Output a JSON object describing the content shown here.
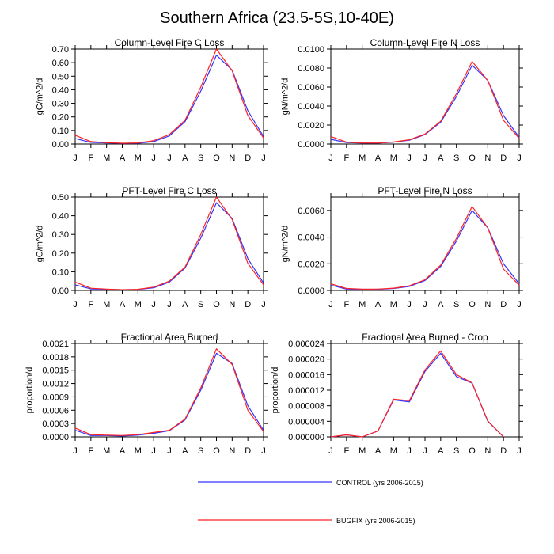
{
  "figure": {
    "title": "Southern Africa (23.5-5S,10-40E)"
  },
  "series_styles": [
    {
      "name": "CONTROL (yrs 2006-2015)",
      "color": "#3333ff"
    },
    {
      "name": "BUGFIX (yrs 2006-2015)",
      "color": "#ff2222"
    }
  ],
  "chart_data": [
    {
      "type": "line",
      "title": "Column-Level Fire C Loss",
      "xlabel": "",
      "ylabel": "gC/m^2/d",
      "categories": [
        "J",
        "F",
        "M",
        "A",
        "M",
        "J",
        "J",
        "A",
        "S",
        "O",
        "N",
        "D",
        "J"
      ],
      "ylim": [
        0,
        0.7
      ],
      "yticks": [
        0,
        0.1,
        0.2,
        0.3,
        0.4,
        0.5,
        0.6,
        0.7
      ],
      "yticklabels": [
        "0.00",
        "0.10",
        "0.20",
        "0.30",
        "0.40",
        "0.50",
        "0.60",
        "0.70"
      ],
      "series": [
        {
          "name": "CONTROL (yrs 2006-2015)",
          "values": [
            0.04,
            0.012,
            0.008,
            0.005,
            0.006,
            0.018,
            0.06,
            0.165,
            0.39,
            0.655,
            0.545,
            0.245,
            0.055
          ]
        },
        {
          "name": "BUGFIX (yrs 2006-2015)",
          "values": [
            0.065,
            0.018,
            0.01,
            0.006,
            0.008,
            0.025,
            0.07,
            0.175,
            0.42,
            0.7,
            0.54,
            0.21,
            0.045
          ]
        }
      ]
    },
    {
      "type": "line",
      "title": "Column-Level Fire N Loss",
      "xlabel": "",
      "ylabel": "gN/m^2/d",
      "categories": [
        "J",
        "F",
        "M",
        "A",
        "M",
        "J",
        "J",
        "A",
        "S",
        "O",
        "N",
        "D",
        "J"
      ],
      "ylim": [
        0,
        0.01
      ],
      "yticks": [
        0,
        0.002,
        0.004,
        0.006,
        0.008,
        0.01
      ],
      "yticklabels": [
        "0.0000",
        "0.0020",
        "0.0040",
        "0.0060",
        "0.0080",
        "0.0100"
      ],
      "series": [
        {
          "name": "CONTROL (yrs 2006-2015)",
          "values": [
            0.0005,
            0.00015,
            0.0001,
            0.0001,
            0.0002,
            0.0004,
            0.001,
            0.0023,
            0.005,
            0.0083,
            0.0067,
            0.003,
            0.0007
          ]
        },
        {
          "name": "BUGFIX (yrs 2006-2015)",
          "values": [
            0.0008,
            0.0002,
            0.00012,
            0.0001,
            0.00022,
            0.00045,
            0.00105,
            0.0024,
            0.0053,
            0.0087,
            0.0067,
            0.0025,
            0.0006
          ]
        }
      ]
    },
    {
      "type": "line",
      "title": "PFT-Level Fire C Loss",
      "xlabel": "",
      "ylabel": "gC/m^2/d",
      "categories": [
        "J",
        "F",
        "M",
        "A",
        "M",
        "J",
        "J",
        "A",
        "S",
        "O",
        "N",
        "D",
        "J"
      ],
      "ylim": [
        0,
        0.5
      ],
      "yticks": [
        0,
        0.1,
        0.2,
        0.3,
        0.4,
        0.5
      ],
      "yticklabels": [
        "0.00",
        "0.10",
        "0.20",
        "0.30",
        "0.40",
        "0.50"
      ],
      "series": [
        {
          "name": "CONTROL (yrs 2006-2015)",
          "values": [
            0.03,
            0.008,
            0.006,
            0.004,
            0.005,
            0.014,
            0.045,
            0.12,
            0.28,
            0.47,
            0.385,
            0.17,
            0.04
          ]
        },
        {
          "name": "BUGFIX (yrs 2006-2015)",
          "values": [
            0.045,
            0.012,
            0.007,
            0.004,
            0.006,
            0.018,
            0.05,
            0.125,
            0.3,
            0.5,
            0.38,
            0.145,
            0.03
          ]
        }
      ]
    },
    {
      "type": "line",
      "title": "PFT-Level Fire N Loss",
      "xlabel": "",
      "ylabel": "gN/m^2/d",
      "categories": [
        "J",
        "F",
        "M",
        "A",
        "M",
        "J",
        "J",
        "A",
        "S",
        "O",
        "N",
        "D",
        "J"
      ],
      "ylim": [
        0,
        0.007
      ],
      "yticks": [
        0,
        0.002,
        0.004,
        0.006
      ],
      "yticklabels": [
        "0.0000",
        "0.0020",
        "0.0040",
        "0.0060"
      ],
      "series": [
        {
          "name": "CONTROL (yrs 2006-2015)",
          "values": [
            0.0004,
            0.0001,
            8e-05,
            8e-05,
            0.00015,
            0.0003,
            0.00075,
            0.0018,
            0.0037,
            0.006,
            0.0047,
            0.002,
            0.0005
          ]
        },
        {
          "name": "BUGFIX (yrs 2006-2015)",
          "values": [
            0.0005,
            0.00015,
            0.0001,
            0.0001,
            0.00017,
            0.00035,
            0.0008,
            0.0019,
            0.0039,
            0.0063,
            0.0047,
            0.0016,
            0.0004
          ]
        }
      ]
    },
    {
      "type": "line",
      "title": "Fractional Area Burned",
      "xlabel": "",
      "ylabel": "proportion/d",
      "categories": [
        "J",
        "F",
        "M",
        "A",
        "M",
        "J",
        "J",
        "A",
        "S",
        "O",
        "N",
        "D",
        "J"
      ],
      "ylim": [
        0,
        0.0021
      ],
      "yticks": [
        0,
        0.0003,
        0.0006,
        0.0009,
        0.0012,
        0.0015,
        0.0018,
        0.0021
      ],
      "yticklabels": [
        "0.0000",
        "0.0003",
        "0.0006",
        "0.0009",
        "0.0012",
        "0.0015",
        "0.0018",
        "0.0021"
      ],
      "series": [
        {
          "name": "CONTROL (yrs 2006-2015)",
          "values": [
            0.00015,
            3e-05,
            3e-05,
            2e-05,
            4e-05,
            8e-05,
            0.00014,
            0.00038,
            0.00105,
            0.00188,
            0.00165,
            0.0007,
            0.00015
          ]
        },
        {
          "name": "BUGFIX (yrs 2006-2015)",
          "values": [
            0.0002,
            5e-05,
            4e-05,
            3e-05,
            5e-05,
            0.0001,
            0.00015,
            0.0004,
            0.0011,
            0.00198,
            0.00163,
            0.0006,
            0.00012
          ]
        }
      ]
    },
    {
      "type": "line",
      "title": "Fractional Area Burned - Crop",
      "xlabel": "",
      "ylabel": "proportion/d",
      "categories": [
        "J",
        "F",
        "M",
        "A",
        "M",
        "J",
        "J",
        "A",
        "S",
        "O",
        "N",
        "D",
        "J"
      ],
      "ylim": [
        0,
        2.4e-05
      ],
      "yticks": [
        0,
        4e-06,
        8e-06,
        1.2e-05,
        1.6e-05,
        2e-05,
        2.4e-05
      ],
      "yticklabels": [
        "0.000000",
        "0.000004",
        "0.000008",
        "0.000012",
        "0.000016",
        "0.000020",
        "0.000024"
      ],
      "series": [
        {
          "name": "CONTROL (yrs 2006-2015)",
          "values": [
            0,
            5e-07,
            0,
            1.5e-06,
            9.5e-06,
            9e-06,
            1.68e-05,
            2.15e-05,
            1.55e-05,
            1.38e-05,
            4e-06,
            0,
            null
          ]
        },
        {
          "name": "BUGFIX (yrs 2006-2015)",
          "values": [
            0,
            5e-07,
            0,
            1.5e-06,
            9.7e-06,
            9.3e-06,
            1.72e-05,
            2.21e-05,
            1.6e-05,
            1.39e-05,
            4.1e-06,
            0,
            null
          ]
        }
      ]
    }
  ]
}
